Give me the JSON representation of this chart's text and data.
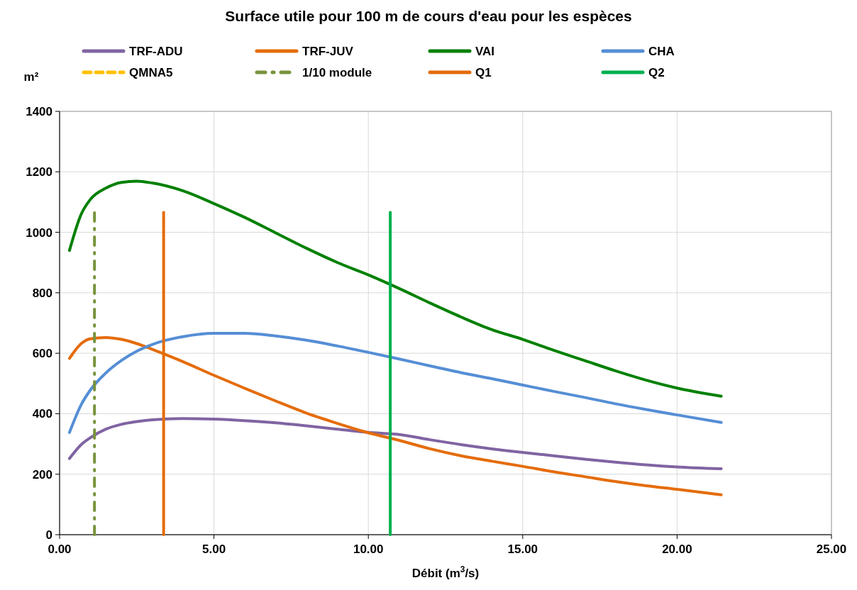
{
  "chart_data": {
    "type": "line",
    "title": "Surface utile pour 100 m de cours d'eau pour les espèces",
    "xlabel": "Débit (m$^{3}$/s)",
    "ylabel": "m²",
    "xlim": [
      0,
      25
    ],
    "xticks": [
      {
        "value": 0,
        "label": "0.00"
      },
      {
        "value": 5,
        "label": "5.00"
      },
      {
        "value": 10,
        "label": "10.00"
      },
      {
        "value": 15,
        "label": "15.00"
      },
      {
        "value": 20,
        "label": "20.00"
      },
      {
        "value": 25,
        "label": "25.00"
      }
    ],
    "ylim": [
      0,
      1400
    ],
    "yticks": [
      0,
      200,
      400,
      600,
      800,
      1000,
      1200,
      1400
    ],
    "grid": true,
    "legend": "top",
    "marker": "none",
    "x": [
      0.32,
      0.7,
      1,
      1.5,
      2,
      2.5,
      3,
      4,
      5,
      6,
      7,
      8,
      9,
      10,
      11,
      12,
      13,
      14,
      15,
      16,
      17,
      18,
      19,
      20,
      21.43
    ],
    "series": [
      {
        "name": "TRF-ADU",
        "color": "#8064a2",
        "values": [
          252,
          298,
          321,
          349,
          365,
          374,
          380,
          384,
          382,
          377,
          370,
          360,
          349,
          338,
          331,
          314,
          298,
          284,
          272,
          261,
          250,
          240,
          231,
          224,
          218
        ]
      },
      {
        "name": "TRF-JUV",
        "color": "#e46c0a",
        "values": [
          583,
          632,
          648,
          652,
          646,
          632,
          613,
          572,
          527,
          484,
          442,
          402,
          368,
          337,
          312,
          284,
          261,
          243,
          226,
          208,
          192,
          176,
          162,
          150,
          132
        ]
      },
      {
        "name": "VAI",
        "color": "#008000",
        "values": [
          940,
          1060,
          1109,
          1146,
          1165,
          1169,
          1163,
          1137,
          1095,
          1049,
          998,
          947,
          900,
          859,
          814,
          766,
          720,
          678,
          646,
          610,
          576,
          542,
          511,
          485,
          458
        ]
      },
      {
        "name": "CHA",
        "color": "#558ed5",
        "values": [
          338,
          430,
          479,
          535,
          576,
          607,
          629,
          655,
          666,
          666,
          657,
          643,
          624,
          603,
          581,
          558,
          536,
          516,
          495,
          474,
          454,
          433,
          414,
          396,
          371
        ]
      },
      {
        "name": "QMNA5",
        "color": "#ffc000",
        "line_style": "dashed",
        "values": [
          null,
          null,
          null,
          null,
          null,
          null,
          null,
          null,
          null,
          null,
          null,
          null,
          null,
          null,
          null,
          null,
          null,
          null,
          null,
          null,
          null,
          null,
          null,
          null,
          null
        ]
      },
      {
        "name": "1/10 module",
        "color": "#77933c",
        "line_style": "dashdot",
        "x": [
          1.13,
          1.13
        ],
        "values": [
          0,
          1066
        ]
      },
      {
        "name": "Q1",
        "color": "#e46c0a",
        "x": [
          3.37,
          3.37
        ],
        "values": [
          0,
          1066
        ]
      },
      {
        "name": "Q2",
        "color": "#00b050",
        "x": [
          10.71,
          10.71
        ],
        "values": [
          0,
          1066
        ]
      }
    ]
  }
}
